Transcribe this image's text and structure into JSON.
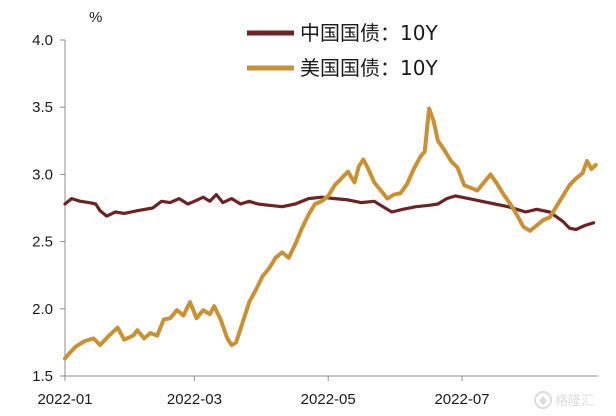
{
  "colors": {
    "china": "#6b2323",
    "us": "#c89234",
    "axis": "#8c8c8c",
    "watermark": "#d9d9d9"
  },
  "watermark": {
    "text": "格隆汇",
    "icon": "gelonghui-logo-icon"
  },
  "chart_data": {
    "type": "line",
    "unit": "%",
    "ylim": [
      1.5,
      4.0
    ],
    "yticks": [
      "1.5",
      "2.0",
      "2.5",
      "3.0",
      "3.5",
      "4.0"
    ],
    "xlim": [
      "2022-01-01",
      "2022-09-01"
    ],
    "xticks": [
      {
        "date": "2022-01-01",
        "label": "2022-01"
      },
      {
        "date": "2022-03-01",
        "label": "2022-03"
      },
      {
        "date": "2022-05-01",
        "label": "2022-05"
      },
      {
        "date": "2022-07-01",
        "label": "2022-07"
      }
    ],
    "grid": false,
    "legend_position": "top-right",
    "series": [
      {
        "name": "中国国债：10Y",
        "color": "#6b2323",
        "points": [
          [
            "2022-01-01",
            2.78
          ],
          [
            "2022-01-04",
            2.82
          ],
          [
            "2022-01-08",
            2.8
          ],
          [
            "2022-01-12",
            2.79
          ],
          [
            "2022-01-15",
            2.78
          ],
          [
            "2022-01-17",
            2.73
          ],
          [
            "2022-01-20",
            2.69
          ],
          [
            "2022-01-24",
            2.72
          ],
          [
            "2022-01-28",
            2.71
          ],
          [
            "2022-02-03",
            2.73
          ],
          [
            "2022-02-10",
            2.75
          ],
          [
            "2022-02-14",
            2.8
          ],
          [
            "2022-02-18",
            2.79
          ],
          [
            "2022-02-22",
            2.82
          ],
          [
            "2022-02-26",
            2.78
          ],
          [
            "2022-03-01",
            2.8
          ],
          [
            "2022-03-05",
            2.83
          ],
          [
            "2022-03-08",
            2.8
          ],
          [
            "2022-03-11",
            2.85
          ],
          [
            "2022-03-14",
            2.79
          ],
          [
            "2022-03-18",
            2.82
          ],
          [
            "2022-03-22",
            2.78
          ],
          [
            "2022-03-26",
            2.8
          ],
          [
            "2022-03-30",
            2.78
          ],
          [
            "2022-04-04",
            2.77
          ],
          [
            "2022-04-10",
            2.76
          ],
          [
            "2022-04-16",
            2.78
          ],
          [
            "2022-04-22",
            2.82
          ],
          [
            "2022-04-28",
            2.83
          ],
          [
            "2022-05-04",
            2.82
          ],
          [
            "2022-05-10",
            2.81
          ],
          [
            "2022-05-16",
            2.79
          ],
          [
            "2022-05-22",
            2.8
          ],
          [
            "2022-05-26",
            2.76
          ],
          [
            "2022-05-30",
            2.72
          ],
          [
            "2022-06-04",
            2.74
          ],
          [
            "2022-06-10",
            2.76
          ],
          [
            "2022-06-16",
            2.77
          ],
          [
            "2022-06-20",
            2.78
          ],
          [
            "2022-06-24",
            2.82
          ],
          [
            "2022-06-28",
            2.84
          ],
          [
            "2022-07-04",
            2.82
          ],
          [
            "2022-07-10",
            2.8
          ],
          [
            "2022-07-16",
            2.78
          ],
          [
            "2022-07-22",
            2.76
          ],
          [
            "2022-07-26",
            2.74
          ],
          [
            "2022-07-30",
            2.72
          ],
          [
            "2022-08-04",
            2.74
          ],
          [
            "2022-08-10",
            2.72
          ],
          [
            "2022-08-16",
            2.65
          ],
          [
            "2022-08-19",
            2.6
          ],
          [
            "2022-08-22",
            2.59
          ],
          [
            "2022-08-26",
            2.62
          ],
          [
            "2022-08-30",
            2.64
          ]
        ]
      },
      {
        "name": "美国国债：10Y",
        "color": "#c89234",
        "points": [
          [
            "2022-01-01",
            1.63
          ],
          [
            "2022-01-03",
            1.67
          ],
          [
            "2022-01-06",
            1.72
          ],
          [
            "2022-01-10",
            1.76
          ],
          [
            "2022-01-14",
            1.78
          ],
          [
            "2022-01-17",
            1.73
          ],
          [
            "2022-01-21",
            1.8
          ],
          [
            "2022-01-25",
            1.86
          ],
          [
            "2022-01-28",
            1.77
          ],
          [
            "2022-02-01",
            1.8
          ],
          [
            "2022-02-03",
            1.84
          ],
          [
            "2022-02-06",
            1.78
          ],
          [
            "2022-02-09",
            1.82
          ],
          [
            "2022-02-12",
            1.8
          ],
          [
            "2022-02-15",
            1.92
          ],
          [
            "2022-02-18",
            1.93
          ],
          [
            "2022-02-21",
            1.99
          ],
          [
            "2022-02-24",
            1.95
          ],
          [
            "2022-02-27",
            2.05
          ],
          [
            "2022-03-02",
            1.93
          ],
          [
            "2022-03-05",
            1.99
          ],
          [
            "2022-03-08",
            1.96
          ],
          [
            "2022-03-10",
            2.02
          ],
          [
            "2022-03-13",
            1.92
          ],
          [
            "2022-03-16",
            1.78
          ],
          [
            "2022-03-18",
            1.73
          ],
          [
            "2022-03-20",
            1.75
          ],
          [
            "2022-03-23",
            1.9
          ],
          [
            "2022-03-26",
            2.05
          ],
          [
            "2022-03-29",
            2.14
          ],
          [
            "2022-04-01",
            2.24
          ],
          [
            "2022-04-04",
            2.3
          ],
          [
            "2022-04-07",
            2.38
          ],
          [
            "2022-04-10",
            2.42
          ],
          [
            "2022-04-13",
            2.38
          ],
          [
            "2022-04-16",
            2.48
          ],
          [
            "2022-04-19",
            2.6
          ],
          [
            "2022-04-22",
            2.7
          ],
          [
            "2022-04-25",
            2.78
          ],
          [
            "2022-04-28",
            2.8
          ],
          [
            "2022-05-01",
            2.84
          ],
          [
            "2022-05-04",
            2.92
          ],
          [
            "2022-05-07",
            2.97
          ],
          [
            "2022-05-10",
            3.02
          ],
          [
            "2022-05-13",
            2.94
          ],
          [
            "2022-05-15",
            3.06
          ],
          [
            "2022-05-17",
            3.11
          ],
          [
            "2022-05-19",
            3.05
          ],
          [
            "2022-05-22",
            2.94
          ],
          [
            "2022-05-25",
            2.88
          ],
          [
            "2022-05-28",
            2.82
          ],
          [
            "2022-05-31",
            2.85
          ],
          [
            "2022-06-03",
            2.86
          ],
          [
            "2022-06-06",
            2.93
          ],
          [
            "2022-06-09",
            3.04
          ],
          [
            "2022-06-12",
            3.13
          ],
          [
            "2022-06-14",
            3.17
          ],
          [
            "2022-06-16",
            3.49
          ],
          [
            "2022-06-18",
            3.4
          ],
          [
            "2022-06-20",
            3.25
          ],
          [
            "2022-06-23",
            3.18
          ],
          [
            "2022-06-26",
            3.1
          ],
          [
            "2022-06-29",
            3.05
          ],
          [
            "2022-07-02",
            2.92
          ],
          [
            "2022-07-05",
            2.9
          ],
          [
            "2022-07-08",
            2.88
          ],
          [
            "2022-07-11",
            2.94
          ],
          [
            "2022-07-14",
            3.0
          ],
          [
            "2022-07-17",
            2.93
          ],
          [
            "2022-07-20",
            2.85
          ],
          [
            "2022-07-23",
            2.78
          ],
          [
            "2022-07-26",
            2.7
          ],
          [
            "2022-07-29",
            2.61
          ],
          [
            "2022-08-01",
            2.58
          ],
          [
            "2022-08-04",
            2.62
          ],
          [
            "2022-08-07",
            2.66
          ],
          [
            "2022-08-10",
            2.68
          ],
          [
            "2022-08-13",
            2.76
          ],
          [
            "2022-08-16",
            2.84
          ],
          [
            "2022-08-19",
            2.92
          ],
          [
            "2022-08-22",
            2.97
          ],
          [
            "2022-08-25",
            3.01
          ],
          [
            "2022-08-27",
            3.1
          ],
          [
            "2022-08-29",
            3.04
          ],
          [
            "2022-08-31",
            3.07
          ]
        ]
      }
    ]
  }
}
